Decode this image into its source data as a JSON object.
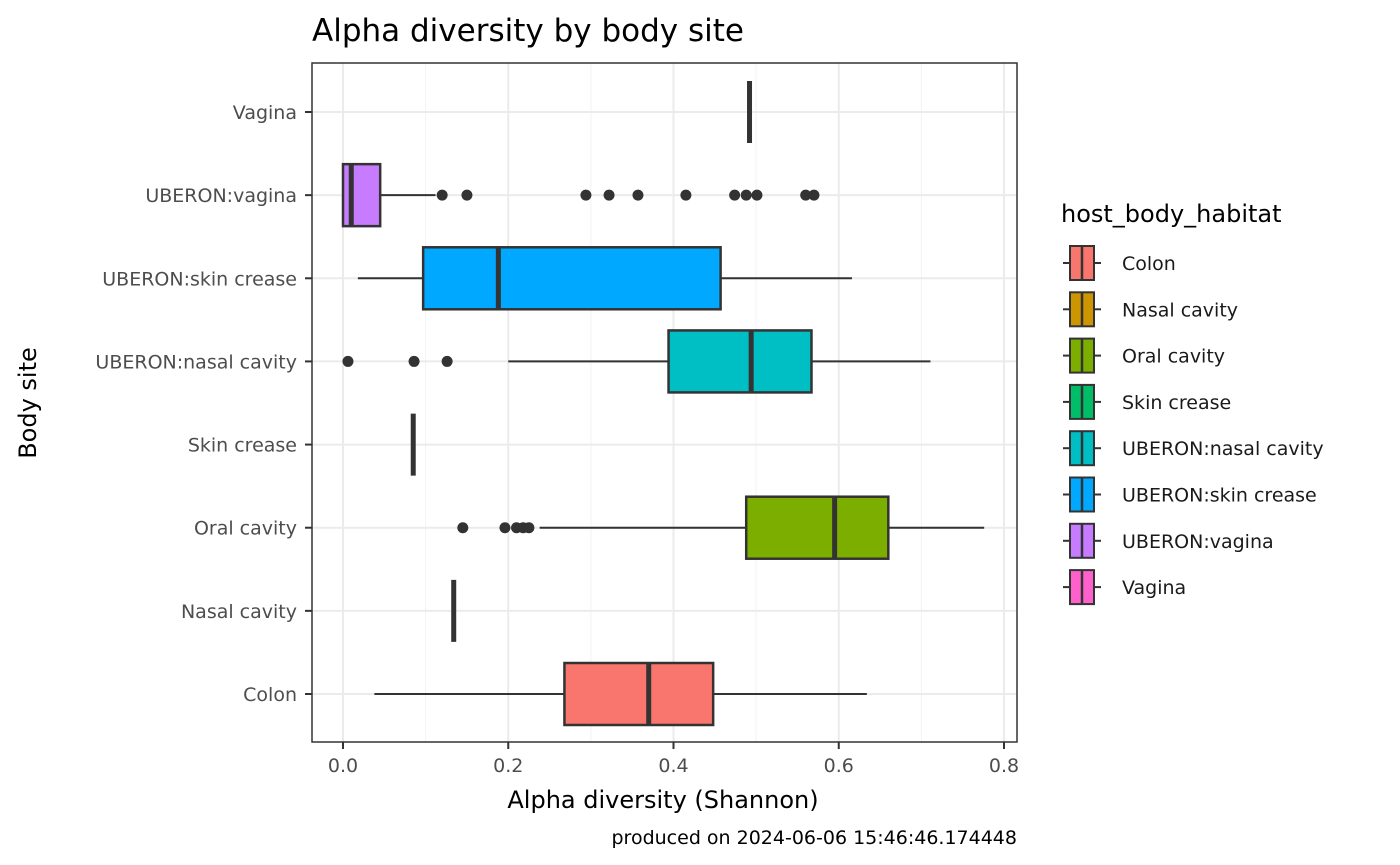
{
  "chart_data": {
    "type": "boxplot",
    "orientation": "horizontal",
    "title": "Alpha diversity by body site",
    "xlabel": "Alpha diversity (Shannon)",
    "ylabel": "Body site",
    "xlim": [
      -0.04,
      0.82
    ],
    "xticks": [
      0.0,
      0.2,
      0.4,
      0.6,
      0.8
    ],
    "xtick_labels": [
      "0.0",
      "0.2",
      "0.4",
      "0.6",
      "0.8"
    ],
    "grid": true,
    "categories": [
      "Colon",
      "Nasal cavity",
      "Oral cavity",
      "Skin crease",
      "UBERON:nasal cavity",
      "UBERON:skin crease",
      "UBERON:vagina",
      "Vagina"
    ],
    "boxes": [
      {
        "category": "Colon",
        "min": 0.038,
        "q1": 0.268,
        "median": 0.37,
        "q3": 0.448,
        "max": 0.634,
        "outliers": []
      },
      {
        "category": "Nasal cavity",
        "min": 0.134,
        "q1": 0.134,
        "median": 0.134,
        "q3": 0.134,
        "max": 0.134,
        "outliers": []
      },
      {
        "category": "Oral cavity",
        "min": 0.238,
        "q1": 0.488,
        "median": 0.595,
        "q3": 0.66,
        "max": 0.776,
        "outliers": [
          0.145,
          0.196,
          0.21,
          0.218,
          0.225
        ]
      },
      {
        "category": "Skin crease",
        "min": 0.085,
        "q1": 0.085,
        "median": 0.085,
        "q3": 0.085,
        "max": 0.085,
        "outliers": []
      },
      {
        "category": "UBERON:nasal cavity",
        "min": 0.2,
        "q1": 0.394,
        "median": 0.494,
        "q3": 0.567,
        "max": 0.711,
        "outliers": [
          0.006,
          0.086,
          0.126
        ]
      },
      {
        "category": "UBERON:skin crease",
        "min": 0.018,
        "q1": 0.097,
        "median": 0.188,
        "q3": 0.457,
        "max": 0.616,
        "outliers": []
      },
      {
        "category": "UBERON:vagina",
        "min": 0.0,
        "q1": 0.0,
        "median": 0.01,
        "q3": 0.045,
        "max": 0.112,
        "outliers": [
          0.12,
          0.15,
          0.294,
          0.322,
          0.357,
          0.415,
          0.474,
          0.488,
          0.501,
          0.56,
          0.57
        ]
      },
      {
        "category": "Vagina",
        "min": 0.492,
        "q1": 0.492,
        "median": 0.492,
        "q3": 0.492,
        "max": 0.492,
        "outliers": []
      }
    ],
    "legend": {
      "title": "host_body_habitat",
      "placement": "right",
      "entries": [
        {
          "label": "Colon",
          "color": "#F8766D"
        },
        {
          "label": "Nasal cavity",
          "color": "#CD9600"
        },
        {
          "label": "Oral cavity",
          "color": "#7CAE00"
        },
        {
          "label": "Skin crease",
          "color": "#00BE67"
        },
        {
          "label": "UBERON:nasal cavity",
          "color": "#00BFC4"
        },
        {
          "label": "UBERON:skin crease",
          "color": "#00A9FF"
        },
        {
          "label": "UBERON:vagina",
          "color": "#C77CFF"
        },
        {
          "label": "Vagina",
          "color": "#FF61CC"
        }
      ]
    },
    "caption": "produced on 2024-06-06 15:46:46.174448"
  }
}
